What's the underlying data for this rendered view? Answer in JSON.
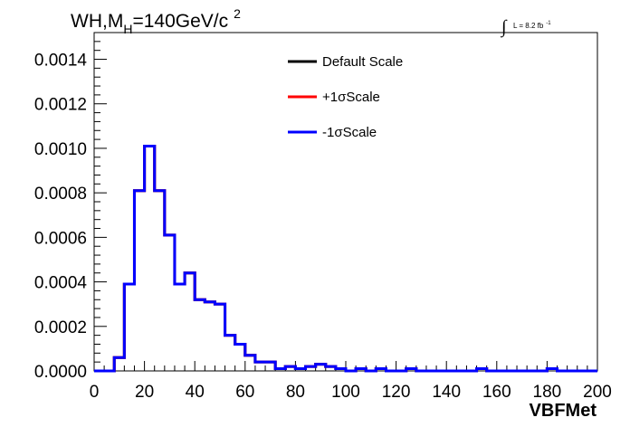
{
  "chart_data": {
    "type": "line",
    "title": {
      "prefix": "WH,M",
      "subscript": "H",
      "suffix": "=140GeV/c",
      "superscript": "2"
    },
    "luminosity": {
      "symbol": "∫",
      "text": "L = 8.2 fb",
      "superscript": "-1"
    },
    "xlabel": "VBFMet",
    "ylabel": "",
    "xlim": [
      0,
      200
    ],
    "ylim": [
      0,
      0.00152
    ],
    "x_ticks": [
      "0",
      "20",
      "40",
      "60",
      "80",
      "100",
      "120",
      "140",
      "160",
      "180",
      "200"
    ],
    "y_ticks": [
      "0.0000",
      "0.0002",
      "0.0004",
      "0.0006",
      "0.0008",
      "0.0010",
      "0.0012",
      "0.0014"
    ],
    "grid": false,
    "legend_position": "top-center",
    "bin_edges": [
      0,
      4,
      8,
      12,
      16,
      20,
      24,
      28,
      32,
      36,
      40,
      44,
      48,
      52,
      56,
      60,
      64,
      68,
      72,
      76,
      80,
      84,
      88,
      92,
      96,
      100,
      104,
      108,
      112,
      116,
      120,
      124,
      128,
      132,
      136,
      140,
      144,
      148,
      152,
      156,
      160,
      164,
      168,
      172,
      176,
      180,
      184,
      188,
      192,
      196,
      200
    ],
    "series": [
      {
        "name": "Default Scale",
        "color": "#000000",
        "values": [
          0,
          0,
          6e-05,
          0.00039,
          0.00081,
          0.00101,
          0.00081,
          0.00061,
          0.00039,
          0.00044,
          0.00032,
          0.00031,
          0.0003,
          0.00016,
          0.00012,
          7e-05,
          4e-05,
          4e-05,
          1e-05,
          2e-05,
          1e-05,
          2e-05,
          3e-05,
          2e-05,
          1e-05,
          0,
          1e-05,
          0,
          1e-05,
          0,
          0,
          1e-05,
          0,
          0,
          0,
          0,
          0,
          0,
          1e-05,
          0,
          0,
          0,
          0,
          0,
          0,
          1e-05,
          0,
          0,
          0,
          0
        ]
      },
      {
        "name": "+1σScale",
        "color": "#ff0000",
        "values": [
          0,
          0,
          6e-05,
          0.00039,
          0.00081,
          0.00101,
          0.00081,
          0.00061,
          0.00039,
          0.00044,
          0.00032,
          0.00031,
          0.0003,
          0.00016,
          0.00012,
          7e-05,
          4e-05,
          4e-05,
          1e-05,
          2e-05,
          1e-05,
          2e-05,
          3e-05,
          2e-05,
          1e-05,
          0,
          1e-05,
          0,
          1e-05,
          0,
          0,
          1e-05,
          0,
          0,
          0,
          0,
          0,
          0,
          1e-05,
          0,
          0,
          0,
          0,
          0,
          0,
          1e-05,
          0,
          0,
          0,
          0
        ]
      },
      {
        "name": "-1σScale",
        "color": "#0000ff",
        "values": [
          0,
          0,
          6e-05,
          0.00039,
          0.00081,
          0.00101,
          0.00081,
          0.00061,
          0.00039,
          0.00044,
          0.00032,
          0.00031,
          0.0003,
          0.00016,
          0.00012,
          7e-05,
          4e-05,
          4e-05,
          1e-05,
          2e-05,
          1e-05,
          2e-05,
          3e-05,
          2e-05,
          1e-05,
          0,
          1e-05,
          0,
          1e-05,
          0,
          0,
          1e-05,
          0,
          0,
          0,
          0,
          0,
          0,
          1e-05,
          0,
          0,
          0,
          0,
          0,
          0,
          1e-05,
          0,
          0,
          0,
          0
        ]
      }
    ]
  }
}
